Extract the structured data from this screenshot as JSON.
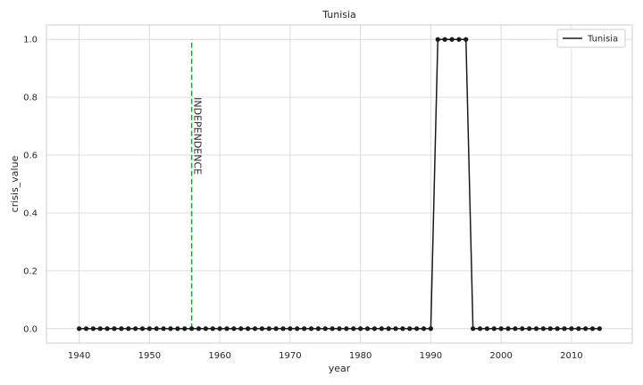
{
  "chart_data": {
    "type": "line",
    "title": "Tunisia",
    "xlabel": "year",
    "ylabel": "crisis_value",
    "xlim": [
      1935.35,
      2018.65
    ],
    "ylim": [
      -0.05,
      1.05
    ],
    "xticks": [
      1940,
      1950,
      1960,
      1970,
      1980,
      1990,
      2000,
      2010
    ],
    "yticks": [
      0.0,
      0.2,
      0.4,
      0.6,
      0.8,
      1.0
    ],
    "xtick_labels": [
      "1940",
      "1950",
      "1960",
      "1970",
      "1980",
      "1990",
      "2000",
      "2010"
    ],
    "ytick_labels": [
      "0.0",
      "0.2",
      "0.4",
      "0.6",
      "0.8",
      "1.0"
    ],
    "grid": true,
    "legend_position": "top-right",
    "series": [
      {
        "name": "Tunisia",
        "color": "#1a1a1a",
        "x": [
          1940,
          1941,
          1942,
          1943,
          1944,
          1945,
          1946,
          1947,
          1948,
          1949,
          1950,
          1951,
          1952,
          1953,
          1954,
          1955,
          1956,
          1957,
          1958,
          1959,
          1960,
          1961,
          1962,
          1963,
          1964,
          1965,
          1966,
          1967,
          1968,
          1969,
          1970,
          1971,
          1972,
          1973,
          1974,
          1975,
          1976,
          1977,
          1978,
          1979,
          1980,
          1981,
          1982,
          1983,
          1984,
          1985,
          1986,
          1987,
          1988,
          1989,
          1990,
          1991,
          1992,
          1993,
          1994,
          1995,
          1996,
          1997,
          1998,
          1999,
          2000,
          2001,
          2002,
          2003,
          2004,
          2005,
          2006,
          2007,
          2008,
          2009,
          2010,
          2011,
          2012,
          2013,
          2014
        ],
        "y": [
          0,
          0,
          0,
          0,
          0,
          0,
          0,
          0,
          0,
          0,
          0,
          0,
          0,
          0,
          0,
          0,
          0,
          0,
          0,
          0,
          0,
          0,
          0,
          0,
          0,
          0,
          0,
          0,
          0,
          0,
          0,
          0,
          0,
          0,
          0,
          0,
          0,
          0,
          0,
          0,
          0,
          0,
          0,
          0,
          0,
          0,
          0,
          0,
          0,
          0,
          0,
          1,
          1,
          1,
          1,
          1,
          0,
          0,
          0,
          0,
          0,
          0,
          0,
          0,
          0,
          0,
          0,
          0,
          0,
          0,
          0,
          0,
          0,
          0,
          0
        ]
      }
    ],
    "annotation": {
      "text": "INDEPENDENCE",
      "x": 1956,
      "y_text": 0.8,
      "vline_x": 1956,
      "vline_ymin": 0,
      "vline_ymax": 1,
      "color": "#2a9a3a"
    }
  }
}
